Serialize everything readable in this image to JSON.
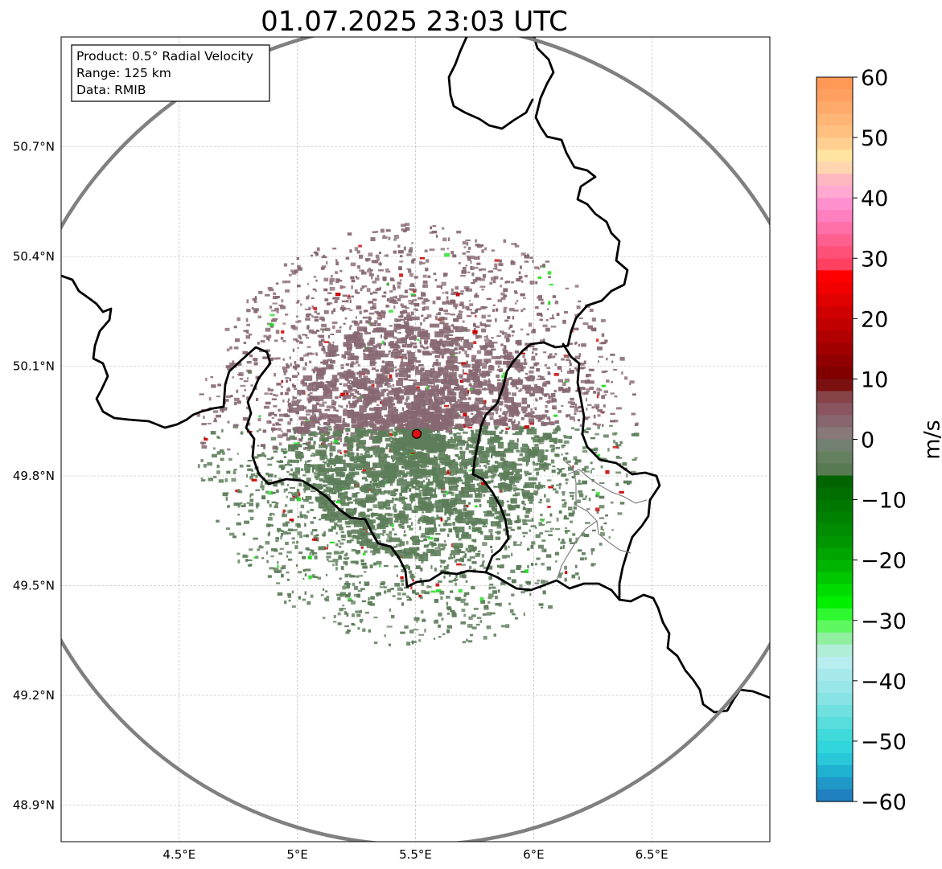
{
  "title": "01.07.2025 23:03 UTC",
  "info": {
    "product": "Product: 0.5° Radial Velocity",
    "range": "Range: 125 km",
    "data": "Data: RMIB"
  },
  "map": {
    "lon_range": [
      4.0,
      7.0
    ],
    "lat_range": [
      48.8,
      51.0
    ],
    "lon_ticks": [
      {
        "value": 4.5,
        "label": "4.5°E"
      },
      {
        "value": 5.0,
        "label": "5°E"
      },
      {
        "value": 5.5,
        "label": "5.5°E"
      },
      {
        "value": 6.0,
        "label": "6°E"
      },
      {
        "value": 6.5,
        "label": "6.5°E"
      }
    ],
    "lat_ticks": [
      {
        "value": 48.9,
        "label": "48.9°N"
      },
      {
        "value": 49.2,
        "label": "49.2°N"
      },
      {
        "value": 49.5,
        "label": "49.5°N"
      },
      {
        "value": 49.8,
        "label": "49.8°N"
      },
      {
        "value": 50.1,
        "label": "50.1°N"
      },
      {
        "value": 50.4,
        "label": "50.4°N"
      },
      {
        "value": 50.7,
        "label": "50.7°N"
      }
    ],
    "radar_site": {
      "lon": 5.505,
      "lat": 49.915
    },
    "range_km": 125,
    "grid": true,
    "echo_colors": {
      "approaching": "#5d7d5a",
      "receding": "#876872",
      "strong_receding": "#cc0000",
      "strong_approaching": "#22dd22",
      "site": "#e01010",
      "range_ring": "#808080"
    }
  },
  "colorbar": {
    "label": "m/s",
    "min": -60,
    "max": 60,
    "ticks": [
      {
        "value": 60,
        "label": "60"
      },
      {
        "value": 50,
        "label": "50"
      },
      {
        "value": 40,
        "label": "40"
      },
      {
        "value": 30,
        "label": "30"
      },
      {
        "value": 20,
        "label": "20"
      },
      {
        "value": 10,
        "label": "10"
      },
      {
        "value": 0,
        "label": "0"
      },
      {
        "value": -10,
        "label": "−10"
      },
      {
        "value": -20,
        "label": "−20"
      },
      {
        "value": -30,
        "label": "−30"
      },
      {
        "value": -40,
        "label": "−40"
      },
      {
        "value": -50,
        "label": "−50"
      },
      {
        "value": -60,
        "label": "−60"
      }
    ],
    "bands": [
      {
        "from": 58,
        "to": 60,
        "color": "#ff9955"
      },
      {
        "from": 56,
        "to": 58,
        "color": "#ffa060"
      },
      {
        "from": 54,
        "to": 56,
        "color": "#ffaa6a"
      },
      {
        "from": 52,
        "to": 54,
        "color": "#ffb575"
      },
      {
        "from": 50,
        "to": 52,
        "color": "#ffc080"
      },
      {
        "from": 48,
        "to": 50,
        "color": "#ffd090"
      },
      {
        "from": 46,
        "to": 48,
        "color": "#ffe5a0"
      },
      {
        "from": 44,
        "to": 46,
        "color": "#ffd6b0"
      },
      {
        "from": 42,
        "to": 44,
        "color": "#ffb8c0"
      },
      {
        "from": 40,
        "to": 42,
        "color": "#ffa8d0"
      },
      {
        "from": 38,
        "to": 40,
        "color": "#ff90d0"
      },
      {
        "from": 36,
        "to": 38,
        "color": "#ff80c0"
      },
      {
        "from": 34,
        "to": 36,
        "color": "#ff70a8"
      },
      {
        "from": 32,
        "to": 34,
        "color": "#ff6090"
      },
      {
        "from": 30,
        "to": 32,
        "color": "#ff5078"
      },
      {
        "from": 28,
        "to": 30,
        "color": "#ff4060"
      },
      {
        "from": 26,
        "to": 28,
        "color": "#ff0000"
      },
      {
        "from": 24,
        "to": 26,
        "color": "#f00000"
      },
      {
        "from": 22,
        "to": 24,
        "color": "#e00000"
      },
      {
        "from": 20,
        "to": 22,
        "color": "#d00000"
      },
      {
        "from": 18,
        "to": 20,
        "color": "#c00000"
      },
      {
        "from": 16,
        "to": 18,
        "color": "#b00000"
      },
      {
        "from": 14,
        "to": 16,
        "color": "#a00000"
      },
      {
        "from": 12,
        "to": 14,
        "color": "#900000"
      },
      {
        "from": 10,
        "to": 12,
        "color": "#800000"
      },
      {
        "from": 8,
        "to": 10,
        "color": "#7a1010"
      },
      {
        "from": 6,
        "to": 8,
        "color": "#864448"
      },
      {
        "from": 4,
        "to": 6,
        "color": "#8a5560"
      },
      {
        "from": 2,
        "to": 4,
        "color": "#886670"
      },
      {
        "from": 0,
        "to": 2,
        "color": "#887878"
      },
      {
        "from": -2,
        "to": 0,
        "color": "#728070"
      },
      {
        "from": -4,
        "to": -2,
        "color": "#65805e"
      },
      {
        "from": -6,
        "to": -4,
        "color": "#587a52"
      },
      {
        "from": -8,
        "to": -6,
        "color": "#006400"
      },
      {
        "from": -10,
        "to": -8,
        "color": "#006e00"
      },
      {
        "from": -12,
        "to": -10,
        "color": "#007800"
      },
      {
        "from": -14,
        "to": -12,
        "color": "#008200"
      },
      {
        "from": -16,
        "to": -14,
        "color": "#008c00"
      },
      {
        "from": -18,
        "to": -16,
        "color": "#009600"
      },
      {
        "from": -20,
        "to": -18,
        "color": "#00a500"
      },
      {
        "from": -22,
        "to": -20,
        "color": "#00b400"
      },
      {
        "from": -24,
        "to": -22,
        "color": "#00c800"
      },
      {
        "from": -26,
        "to": -24,
        "color": "#00dc00"
      },
      {
        "from": -28,
        "to": -26,
        "color": "#00f000"
      },
      {
        "from": -30,
        "to": -28,
        "color": "#30f830"
      },
      {
        "from": -32,
        "to": -30,
        "color": "#60f860"
      },
      {
        "from": -34,
        "to": -32,
        "color": "#90f0a0"
      },
      {
        "from": -36,
        "to": -34,
        "color": "#b0eed8"
      },
      {
        "from": -38,
        "to": -36,
        "color": "#b8eef0"
      },
      {
        "from": -40,
        "to": -38,
        "color": "#a8eaec"
      },
      {
        "from": -42,
        "to": -40,
        "color": "#98e6e8"
      },
      {
        "from": -44,
        "to": -42,
        "color": "#88e4e4"
      },
      {
        "from": -46,
        "to": -44,
        "color": "#70e0e0"
      },
      {
        "from": -48,
        "to": -46,
        "color": "#58dcdc"
      },
      {
        "from": -50,
        "to": -48,
        "color": "#40dada"
      },
      {
        "from": -52,
        "to": -50,
        "color": "#30d6dc"
      },
      {
        "from": -54,
        "to": -52,
        "color": "#28c8d8"
      },
      {
        "from": -56,
        "to": -54,
        "color": "#20b0d0"
      },
      {
        "from": -58,
        "to": -56,
        "color": "#2098c8"
      },
      {
        "from": -60,
        "to": -58,
        "color": "#2080c0"
      }
    ]
  }
}
